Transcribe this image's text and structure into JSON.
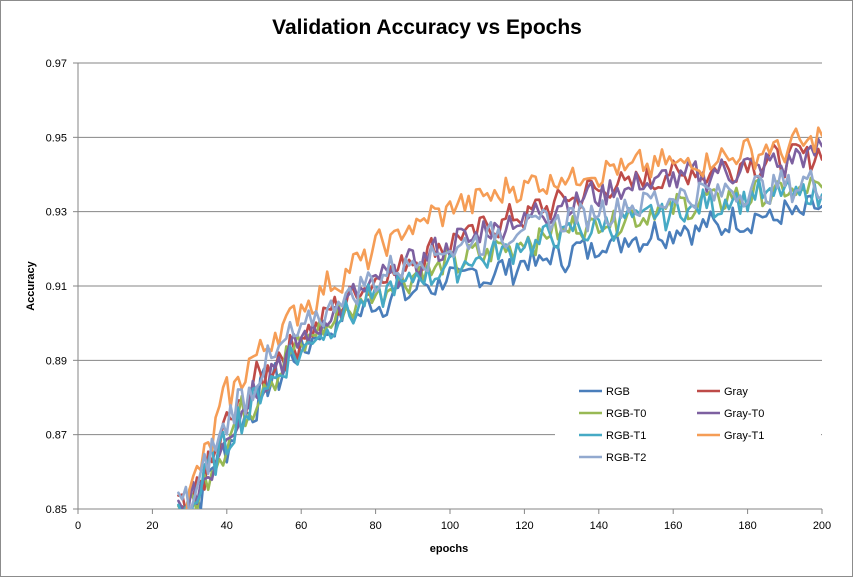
{
  "chart_data": {
    "type": "line",
    "title": "Validation Accuracy vs Epochs",
    "xlabel": "epochs",
    "ylabel": "Accuracy",
    "xlim": [
      0,
      200
    ],
    "ylim": [
      0.85,
      0.97
    ],
    "xticks": [
      "0",
      "20",
      "40",
      "60",
      "80",
      "100",
      "120",
      "140",
      "160",
      "180",
      "200"
    ],
    "yticks": [
      "0.85",
      "0.87",
      "0.89",
      "0.91",
      "0.93",
      "0.95",
      "0.97"
    ],
    "grid": "horizontal major gridlines",
    "legend_position": "bottom-right, inside plot",
    "series": [
      {
        "name": "RGB",
        "color": "#4a7ebb",
        "x": [
          30,
          40,
          50,
          60,
          70,
          80,
          90,
          100,
          110,
          120,
          130,
          140,
          150,
          160,
          170,
          180,
          190,
          200
        ],
        "values": [
          0.85,
          0.868,
          0.882,
          0.893,
          0.901,
          0.905,
          0.909,
          0.912,
          0.913,
          0.916,
          0.918,
          0.921,
          0.923,
          0.925,
          0.926,
          0.928,
          0.929,
          0.931
        ]
      },
      {
        "name": "Gray",
        "color": "#be4b48",
        "x": [
          30,
          40,
          50,
          60,
          70,
          80,
          90,
          100,
          110,
          120,
          130,
          140,
          150,
          160,
          170,
          180,
          190,
          200
        ],
        "values": [
          0.85,
          0.872,
          0.887,
          0.896,
          0.905,
          0.912,
          0.917,
          0.922,
          0.926,
          0.929,
          0.933,
          0.936,
          0.938,
          0.94,
          0.941,
          0.943,
          0.944,
          0.946
        ]
      },
      {
        "name": "RGB-T0",
        "color": "#98b954",
        "x": [
          30,
          40,
          50,
          60,
          70,
          80,
          90,
          100,
          110,
          120,
          130,
          140,
          150,
          160,
          170,
          180,
          190,
          200
        ],
        "values": [
          0.85,
          0.869,
          0.884,
          0.894,
          0.902,
          0.908,
          0.913,
          0.916,
          0.919,
          0.922,
          0.925,
          0.927,
          0.929,
          0.931,
          0.933,
          0.934,
          0.935,
          0.936
        ]
      },
      {
        "name": "Gray-T0",
        "color": "#7d60a0",
        "x": [
          30,
          40,
          50,
          60,
          70,
          80,
          90,
          100,
          110,
          120,
          130,
          140,
          150,
          160,
          170,
          180,
          190,
          200
        ],
        "values": [
          0.85,
          0.871,
          0.886,
          0.895,
          0.904,
          0.911,
          0.916,
          0.921,
          0.925,
          0.928,
          0.932,
          0.935,
          0.937,
          0.939,
          0.94,
          0.942,
          0.943,
          0.947
        ]
      },
      {
        "name": "RGB-T1",
        "color": "#46aac5",
        "x": [
          30,
          40,
          50,
          60,
          70,
          80,
          90,
          100,
          110,
          120,
          130,
          140,
          150,
          160,
          170,
          180,
          190,
          200
        ],
        "values": [
          0.85,
          0.869,
          0.883,
          0.893,
          0.901,
          0.907,
          0.912,
          0.915,
          0.918,
          0.921,
          0.924,
          0.926,
          0.928,
          0.93,
          0.932,
          0.934,
          0.935,
          0.934
        ]
      },
      {
        "name": "Gray-T1",
        "color": "#f59d56",
        "x": [
          30,
          40,
          50,
          60,
          70,
          80,
          90,
          100,
          110,
          120,
          130,
          140,
          150,
          160,
          170,
          180,
          190,
          200
        ],
        "values": [
          0.853,
          0.88,
          0.894,
          0.904,
          0.912,
          0.92,
          0.926,
          0.931,
          0.934,
          0.937,
          0.939,
          0.941,
          0.942,
          0.943,
          0.944,
          0.946,
          0.947,
          0.95
        ]
      },
      {
        "name": "RGB-T2",
        "color": "#92a9cf",
        "x": [
          30,
          40,
          50,
          60,
          70,
          80,
          90,
          100,
          110,
          120,
          130,
          140,
          150,
          160,
          170,
          180,
          190,
          200
        ],
        "values": [
          0.851,
          0.874,
          0.888,
          0.898,
          0.906,
          0.912,
          0.917,
          0.92,
          0.923,
          0.926,
          0.928,
          0.93,
          0.932,
          0.934,
          0.935,
          0.936,
          0.937,
          0.938
        ]
      }
    ]
  }
}
